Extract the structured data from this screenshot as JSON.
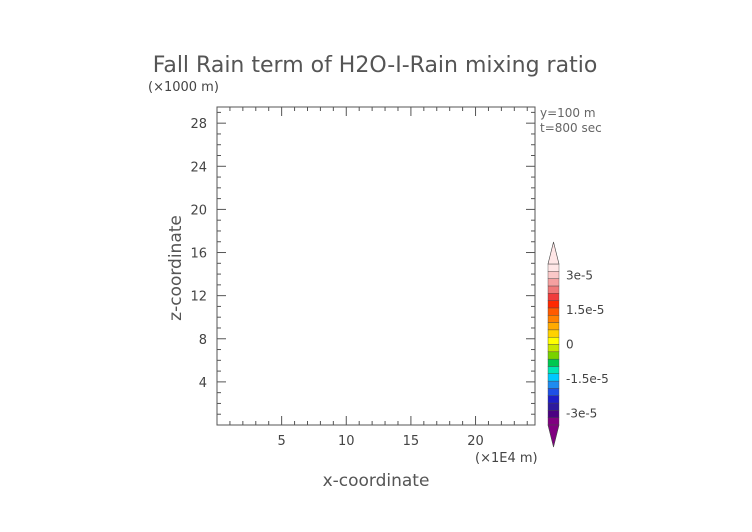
{
  "chart_data": {
    "type": "heatmap",
    "title": "Fall Rain term of H2O-I-Rain mixing ratio",
    "xlabel": "x-coordinate",
    "ylabel": "z-coordinate",
    "x_unit": "(×1E4 m)",
    "y_unit": "(×1000 m)",
    "xlim": [
      0,
      24.6
    ],
    "ylim": [
      0,
      29.5
    ],
    "x_ticks": [
      5,
      10,
      15,
      20
    ],
    "y_ticks": [
      4,
      8,
      12,
      16,
      20,
      24,
      28
    ],
    "annotations": [
      "y=100 m",
      "t=800 sec"
    ],
    "field_values": [],
    "colorbar": {
      "min": -3.5e-05,
      "max": 3.5e-05,
      "labels": [
        {
          "value": 3e-05,
          "text": "3e-5"
        },
        {
          "value": 1.5e-05,
          "text": "1.5e-5"
        },
        {
          "value": 0,
          "text": "0"
        },
        {
          "value": -1.5e-05,
          "text": "-1.5e-5"
        },
        {
          "value": -3e-05,
          "text": "-3e-5"
        }
      ],
      "colors": [
        "#800080",
        "#4b0082",
        "#2e1a9e",
        "#1e1ec8",
        "#1e50e6",
        "#1e8cf0",
        "#00c8ff",
        "#00e6b4",
        "#00c850",
        "#78d200",
        "#c8e600",
        "#ffff00",
        "#ffd200",
        "#ffaa00",
        "#ff8000",
        "#ff5a00",
        "#ff2800",
        "#f03c3c",
        "#f07878",
        "#f5a0a0",
        "#fac8c8",
        "#ffe6e6"
      ]
    }
  }
}
